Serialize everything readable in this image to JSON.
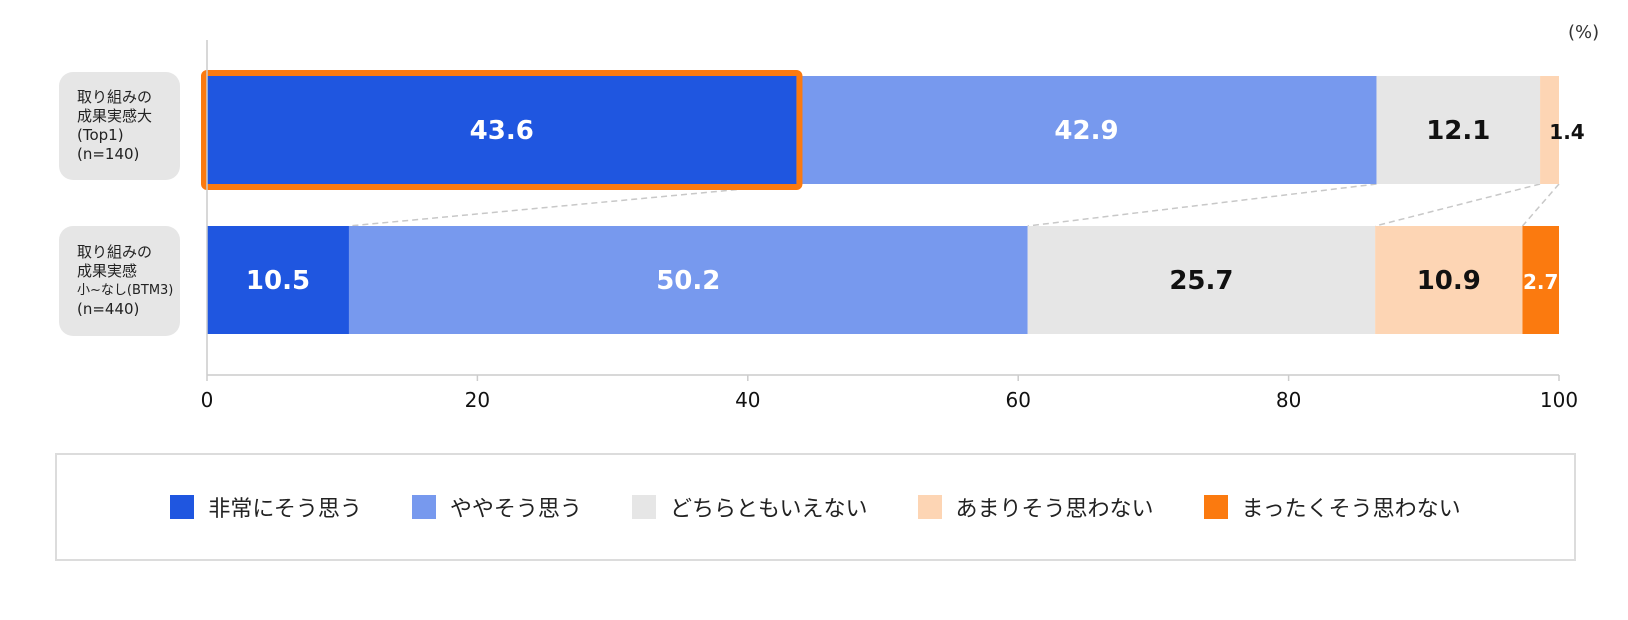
{
  "unit_label": "(%)",
  "rows": [
    {
      "label_lines": [
        "取り組みの",
        "成果実感大",
        "(Top1)",
        "(n=140)"
      ]
    },
    {
      "label_lines": [
        "取り組みの",
        "成果実感",
        "小~なし(BTM3)",
        "(n=440)"
      ]
    }
  ],
  "legend": [
    {
      "label": "非常にそう思う",
      "color": "#1f56e0"
    },
    {
      "label": "ややそう思う",
      "color": "#7799ee"
    },
    {
      "label": "どちらともいえない",
      "color": "#e6e6e6"
    },
    {
      "label": "あまりそう思わない",
      "color": "#fdd5b4"
    },
    {
      "label": "まったくそう思わない",
      "color": "#fb7a0f"
    }
  ],
  "chart_data": {
    "type": "bar",
    "orientation": "horizontal",
    "stacked": true,
    "categories": [
      "取り組みの成果実感大(Top1)(n=140)",
      "取り組みの成果実感小~なし(BTM3)(n=440)"
    ],
    "series": [
      {
        "name": "非常にそう思う",
        "values": [
          43.6,
          10.5
        ],
        "color": "#1f56e0",
        "label_color": "#ffffff"
      },
      {
        "name": "ややそう思う",
        "values": [
          42.9,
          50.2
        ],
        "color": "#7799ee",
        "label_color": "#ffffff"
      },
      {
        "name": "どちらともいえない",
        "values": [
          12.1,
          25.7
        ],
        "color": "#e6e6e6",
        "label_color": "#111111"
      },
      {
        "name": "あまりそう思わない",
        "values": [
          1.4,
          10.9
        ],
        "color": "#fdd5b4",
        "label_color": "#111111"
      },
      {
        "name": "まったくそう思わない",
        "values": [
          0,
          2.7
        ],
        "color": "#fb7a0f",
        "label_color": "#ffffff"
      }
    ],
    "xlim": [
      0,
      100
    ],
    "xticks": [
      0,
      20,
      40,
      60,
      80,
      100
    ],
    "highlight": {
      "row": 0,
      "series": 0,
      "color": "#fb7a0f"
    },
    "connectors": true,
    "grid": false
  }
}
